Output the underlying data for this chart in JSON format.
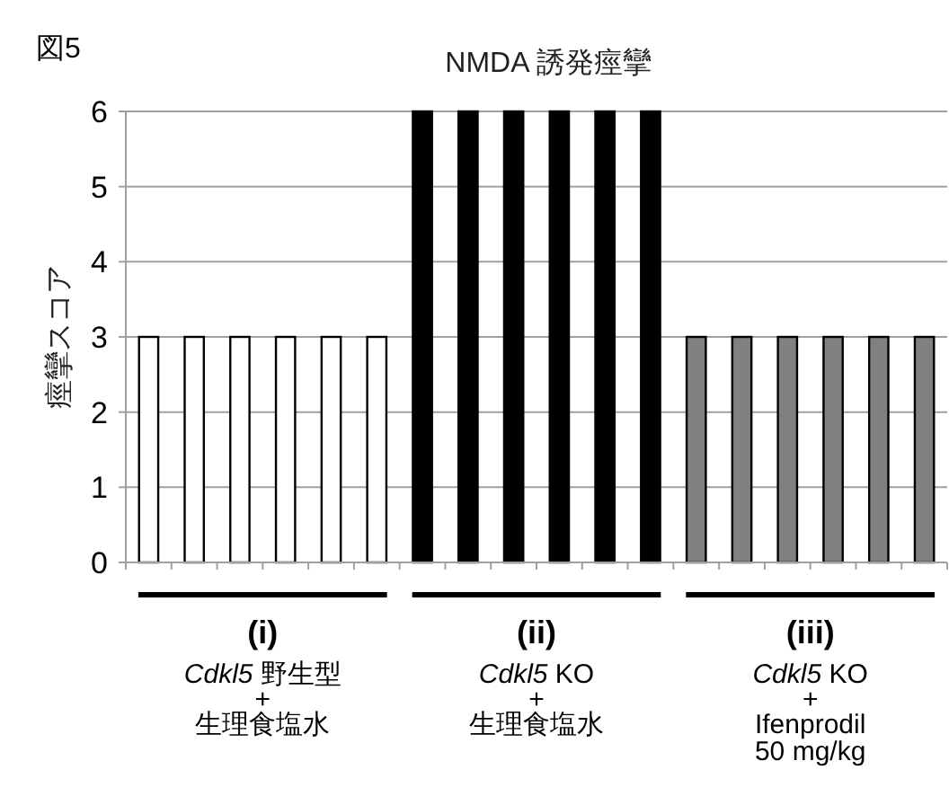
{
  "chart_data": {
    "type": "bar",
    "title": "NMDA 誘発痙攣",
    "ylabel": "痙攣スコア",
    "annotations": [
      "図5",
      "**(i)**\n*Cdkl5* 野生型\n+\n生理食塩水",
      "**(ii)**\n*Cdkl5* KO\n+\n生理食塩水",
      "**(iii)**\n*Cdkl5* KO\n+\nIfenprodil\n50 mg/kg"
    ],
    "categories": [
      null,
      null,
      null,
      null,
      null,
      null,
      null,
      null,
      null,
      null,
      null,
      null,
      null,
      null,
      null,
      null,
      null,
      null
    ],
    "values": [
      3,
      3,
      3,
      3,
      3,
      3,
      6,
      6,
      6,
      6,
      6,
      6,
      3,
      3,
      3,
      3,
      3,
      3
    ],
    "colors": [
      "#ffffff",
      "#ffffff",
      "#ffffff",
      "#ffffff",
      "#ffffff",
      "#ffffff",
      "#000000",
      "#000000",
      "#000000",
      "#000000",
      "#000000",
      "#000000",
      "#808080",
      "#808080",
      "#808080",
      "#808080",
      "#808080",
      "#808080"
    ],
    "ylim": [
      0,
      6
    ],
    "yticks": [
      0,
      1,
      2,
      3,
      4,
      5,
      6
    ],
    "grid": "y"
  }
}
